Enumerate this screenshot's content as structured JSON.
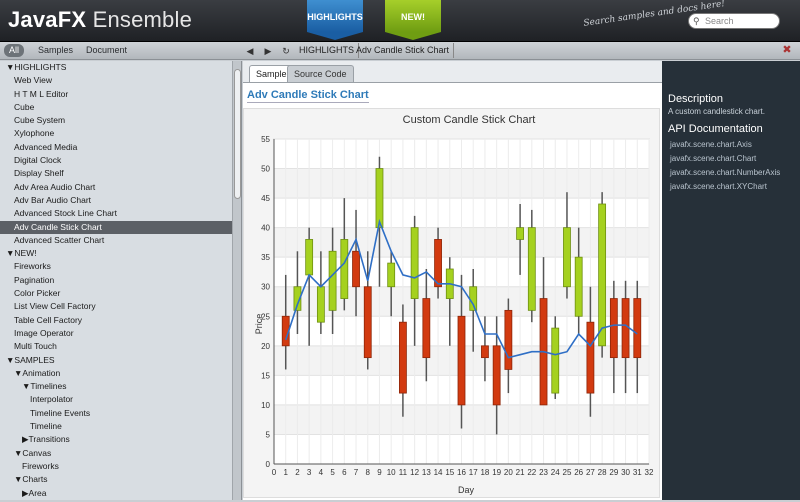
{
  "app": {
    "title_bold": "JavaFX",
    "title_rest": "Ensemble",
    "hint": "Search samples and docs here!"
  },
  "ribbons": {
    "highlights": "HIGHLIGHTS",
    "new": "NEW!"
  },
  "search": {
    "placeholder": "Search"
  },
  "toolbar": {
    "all": "All",
    "samples": "Samples",
    "document": "Document",
    "crumbs": [
      "HIGHLIGHTS",
      "Adv Candle Stick Chart"
    ]
  },
  "sidebar": {
    "items": [
      {
        "label": "▼HIGHLIGHTS",
        "indent": 0
      },
      {
        "label": "Web View",
        "indent": 1
      },
      {
        "label": "H T M L Editor",
        "indent": 1
      },
      {
        "label": "Cube",
        "indent": 1
      },
      {
        "label": "Cube System",
        "indent": 1
      },
      {
        "label": "Xylophone",
        "indent": 1
      },
      {
        "label": "Advanced Media",
        "indent": 1
      },
      {
        "label": "Digital Clock",
        "indent": 1
      },
      {
        "label": "Display Shelf",
        "indent": 1
      },
      {
        "label": "Adv Area Audio Chart",
        "indent": 1
      },
      {
        "label": "Adv Bar Audio Chart",
        "indent": 1
      },
      {
        "label": "Advanced Stock Line Chart",
        "indent": 1
      },
      {
        "label": "Adv Candle Stick Chart",
        "indent": 1,
        "selected": true
      },
      {
        "label": "Advanced Scatter Chart",
        "indent": 1
      },
      {
        "label": "▼NEW!",
        "indent": 0
      },
      {
        "label": "Fireworks",
        "indent": 1
      },
      {
        "label": "Pagination",
        "indent": 1
      },
      {
        "label": "Color Picker",
        "indent": 1
      },
      {
        "label": "List View Cell Factory",
        "indent": 1
      },
      {
        "label": "Table Cell Factory",
        "indent": 1
      },
      {
        "label": "Image Operator",
        "indent": 1
      },
      {
        "label": "Multi Touch",
        "indent": 1
      },
      {
        "label": "▼SAMPLES",
        "indent": 0
      },
      {
        "label": "▼Animation",
        "indent": 1
      },
      {
        "label": "▼Timelines",
        "indent": 2
      },
      {
        "label": "Interpolator",
        "indent": 3
      },
      {
        "label": "Timeline Events",
        "indent": 3
      },
      {
        "label": "Timeline",
        "indent": 3
      },
      {
        "label": "▶Transitions",
        "indent": 2
      },
      {
        "label": "▼Canvas",
        "indent": 1
      },
      {
        "label": "Fireworks",
        "indent": 2
      },
      {
        "label": "▼Charts",
        "indent": 1
      },
      {
        "label": "▶Area",
        "indent": 2
      }
    ]
  },
  "tabs": {
    "sample": "Sample",
    "source": "Source Code"
  },
  "page": {
    "title": "Adv Candle Stick Chart"
  },
  "right": {
    "desc_h": "Description",
    "desc": "A custom candlestick chart.",
    "api_h": "API Documentation",
    "apis": [
      "javafx.scene.chart.Axis",
      "javafx.scene.chart.Chart",
      "javafx.scene.chart.NumberAxis",
      "javafx.scene.chart.XYChart"
    ]
  },
  "colors": {
    "up": "#a5d11f",
    "down": "#d23a10",
    "avg": "#2f6fc6"
  },
  "chart_data": {
    "type": "candlestick",
    "title": "Custom Candle Stick Chart",
    "xlabel": "Day",
    "ylabel": "Price",
    "xlim": [
      0,
      32
    ],
    "ylim": [
      0,
      55
    ],
    "xticks": [
      0,
      1,
      2,
      3,
      4,
      5,
      6,
      7,
      8,
      9,
      10,
      11,
      12,
      13,
      14,
      15,
      16,
      17,
      18,
      19,
      20,
      21,
      22,
      23,
      24,
      25,
      26,
      27,
      28,
      29,
      30,
      31,
      32
    ],
    "yticks": [
      0,
      5,
      10,
      15,
      20,
      25,
      30,
      35,
      40,
      45,
      50,
      55
    ],
    "grid": true,
    "candles": [
      {
        "day": 1,
        "open": 25,
        "close": 20,
        "high": 32,
        "low": 16
      },
      {
        "day": 2,
        "open": 26,
        "close": 30,
        "high": 36,
        "low": 22
      },
      {
        "day": 3,
        "open": 32,
        "close": 38,
        "high": 40,
        "low": 20
      },
      {
        "day": 4,
        "open": 24,
        "close": 30,
        "high": 36,
        "low": 22
      },
      {
        "day": 5,
        "open": 26,
        "close": 36,
        "high": 40,
        "low": 22
      },
      {
        "day": 6,
        "open": 28,
        "close": 38,
        "high": 45,
        "low": 26
      },
      {
        "day": 7,
        "open": 36,
        "close": 30,
        "high": 43,
        "low": 25
      },
      {
        "day": 8,
        "open": 30,
        "close": 18,
        "high": 36,
        "low": 16
      },
      {
        "day": 9,
        "open": 40,
        "close": 50,
        "high": 52,
        "low": 30
      },
      {
        "day": 10,
        "open": 30,
        "close": 34,
        "high": 36,
        "low": 25
      },
      {
        "day": 11,
        "open": 24,
        "close": 12,
        "high": 27,
        "low": 8
      },
      {
        "day": 12,
        "open": 28,
        "close": 40,
        "high": 42,
        "low": 20
      },
      {
        "day": 13,
        "open": 28,
        "close": 18,
        "high": 33,
        "low": 14
      },
      {
        "day": 14,
        "open": 38,
        "close": 30,
        "high": 40,
        "low": 28
      },
      {
        "day": 15,
        "open": 28,
        "close": 33,
        "high": 35,
        "low": 20
      },
      {
        "day": 16,
        "open": 25,
        "close": 10,
        "high": 32,
        "low": 6
      },
      {
        "day": 17,
        "open": 26,
        "close": 30,
        "high": 33,
        "low": 19
      },
      {
        "day": 18,
        "open": 20,
        "close": 18,
        "high": 25,
        "low": 14
      },
      {
        "day": 19,
        "open": 20,
        "close": 10,
        "high": 25,
        "low": 5
      },
      {
        "day": 20,
        "open": 26,
        "close": 16,
        "high": 28,
        "low": 12
      },
      {
        "day": 21,
        "open": 38,
        "close": 40,
        "high": 44,
        "low": 32
      },
      {
        "day": 22,
        "open": 26,
        "close": 40,
        "high": 43,
        "low": 24
      },
      {
        "day": 23,
        "open": 28,
        "close": 10,
        "high": 35,
        "low": 10
      },
      {
        "day": 24,
        "open": 12,
        "close": 23,
        "high": 25,
        "low": 11
      },
      {
        "day": 25,
        "open": 30,
        "close": 40,
        "high": 46,
        "low": 28
      },
      {
        "day": 26,
        "open": 25,
        "close": 35,
        "high": 40,
        "low": 22
      },
      {
        "day": 27,
        "open": 24,
        "close": 12,
        "high": 30,
        "low": 8
      },
      {
        "day": 28,
        "open": 20,
        "close": 44,
        "high": 46,
        "low": 18
      },
      {
        "day": 29,
        "open": 28,
        "close": 18,
        "high": 31,
        "low": 12
      },
      {
        "day": 30,
        "open": 28,
        "close": 18,
        "high": 31,
        "low": 12
      },
      {
        "day": 31,
        "open": 28,
        "close": 18,
        "high": 31,
        "low": 12
      }
    ],
    "average": [
      {
        "day": 1,
        "value": 21
      },
      {
        "day": 2,
        "value": 27
      },
      {
        "day": 3,
        "value": 32
      },
      {
        "day": 4,
        "value": 30
      },
      {
        "day": 5,
        "value": 32
      },
      {
        "day": 6,
        "value": 34
      },
      {
        "day": 7,
        "value": 38
      },
      {
        "day": 8,
        "value": 31
      },
      {
        "day": 9,
        "value": 41
      },
      {
        "day": 10,
        "value": 36
      },
      {
        "day": 11,
        "value": 32
      },
      {
        "day": 12,
        "value": 31.5
      },
      {
        "day": 13,
        "value": 32.5
      },
      {
        "day": 14,
        "value": 30.5
      },
      {
        "day": 15,
        "value": 30.5
      },
      {
        "day": 16,
        "value": 30
      },
      {
        "day": 17,
        "value": 27
      },
      {
        "day": 18,
        "value": 22
      },
      {
        "day": 19,
        "value": 22
      },
      {
        "day": 20,
        "value": 18
      },
      {
        "day": 21,
        "value": 18.5
      },
      {
        "day": 22,
        "value": 19
      },
      {
        "day": 23,
        "value": 19
      },
      {
        "day": 24,
        "value": 18.5
      },
      {
        "day": 25,
        "value": 19
      },
      {
        "day": 26,
        "value": 22
      },
      {
        "day": 27,
        "value": 20
      },
      {
        "day": 28,
        "value": 23
      },
      {
        "day": 29,
        "value": 23.5
      },
      {
        "day": 30,
        "value": 23.5
      },
      {
        "day": 31,
        "value": 22
      }
    ]
  }
}
